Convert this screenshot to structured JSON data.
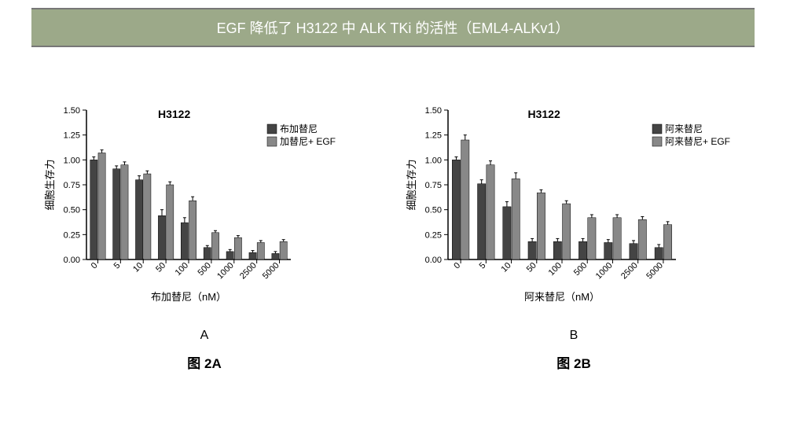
{
  "title": "EGF 降低了 H3122 中 ALK TKi 的活性（EML4-ALKv1）",
  "chartA": {
    "title": "H3122",
    "ylabel": "细胞生存力",
    "xlabel": "布加替尼（nM）",
    "categories": [
      "0",
      "5",
      "10",
      "50",
      "100",
      "500",
      "1000",
      "2500",
      "5000"
    ],
    "series1_name": "布加替尼",
    "series2_name": "加替尼+ EGF",
    "series1_color": "#444444",
    "series2_color": "#888888",
    "ylim": [
      0,
      1.5
    ],
    "ytick_step": 0.25,
    "s1": [
      1.0,
      0.91,
      0.8,
      0.44,
      0.37,
      0.12,
      0.08,
      0.07,
      0.06
    ],
    "s2": [
      1.07,
      0.95,
      0.86,
      0.75,
      0.59,
      0.27,
      0.22,
      0.17,
      0.18
    ],
    "e1": [
      0.03,
      0.03,
      0.04,
      0.06,
      0.05,
      0.02,
      0.02,
      0.02,
      0.02
    ],
    "e2": [
      0.03,
      0.03,
      0.03,
      0.03,
      0.04,
      0.02,
      0.02,
      0.02,
      0.02
    ],
    "panel_letter": "A",
    "fig_label": "图 2A"
  },
  "chartB": {
    "title": "H3122",
    "ylabel": "细胞生存力",
    "xlabel": "阿来替尼（nM）",
    "categories": [
      "0",
      "5",
      "10",
      "50",
      "100",
      "500",
      "1000",
      "2500",
      "5000"
    ],
    "series1_name": "阿来替尼",
    "series2_name": "阿来替尼+ EGF",
    "series1_color": "#444444",
    "series2_color": "#888888",
    "ylim": [
      0,
      1.5
    ],
    "ytick_step": 0.25,
    "s1": [
      1.0,
      0.76,
      0.53,
      0.18,
      0.18,
      0.18,
      0.17,
      0.16,
      0.12
    ],
    "s2": [
      1.2,
      0.95,
      0.81,
      0.67,
      0.56,
      0.42,
      0.42,
      0.4,
      0.35
    ],
    "e1": [
      0.03,
      0.04,
      0.05,
      0.03,
      0.03,
      0.03,
      0.03,
      0.03,
      0.03
    ],
    "e2": [
      0.05,
      0.04,
      0.06,
      0.03,
      0.03,
      0.03,
      0.03,
      0.03,
      0.03
    ],
    "panel_letter": "B",
    "fig_label": "图 2B"
  }
}
